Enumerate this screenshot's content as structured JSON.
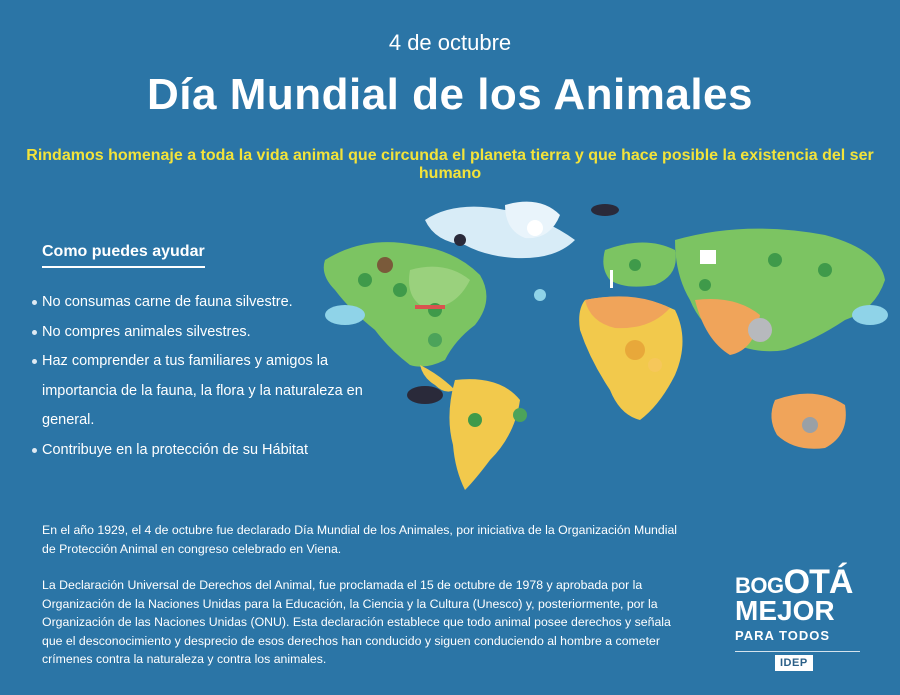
{
  "header": {
    "date": "4 de octubre",
    "title": "Día Mundial de los Animales",
    "subtitle": "Rindamos homenaje a toda la vida animal que circunda el planeta tierra y que hace posible la existencia del ser humano"
  },
  "help": {
    "heading": "Como puedes ayudar",
    "items": [
      "No consumas carne de fauna silvestre.",
      "No compres animales silvestres.",
      "Haz comprender a tus familiares y amigos la importancia de la fauna, la flora y la naturaleza en general.",
      "Contribuye en la protección de su Hábitat"
    ]
  },
  "body": {
    "paragraph_1": "En el año 1929, el 4 de octubre fue declarado Día Mundial de los Animales, por iniciativa de la Organización Mundial de Protección Animal en congreso celebrado en Viena.",
    "paragraph_2": "La Declaración Universal de Derechos del Animal, fue proclamada el 15 de octubre de 1978 y aprobada por la Organización de la Naciones Unidas para la Educación, la Ciencia y la Cultura (Unesco) y, posteriormente, por la Organización de las Naciones Unidas (ONU). Esta declaración establece que todo animal posee derechos y señala que el desconocimiento y desprecio de esos derechos han conducido y siguen conduciendo al hombre a cometer crímenes contra la naturaleza y contra los animales."
  },
  "logo": {
    "row1_a": "BOG",
    "row1_b": "OTÁ",
    "row2": "MEJOR",
    "row3": "PARA TODOS",
    "badge": "IDEP"
  },
  "colors": {
    "background": "#2b75a6",
    "subtitle": "#f3e33a",
    "land_green": "#7cc462",
    "land_yellow": "#f2c94c",
    "land_orange": "#f0a45a",
    "ice": "#d8ecf7"
  }
}
